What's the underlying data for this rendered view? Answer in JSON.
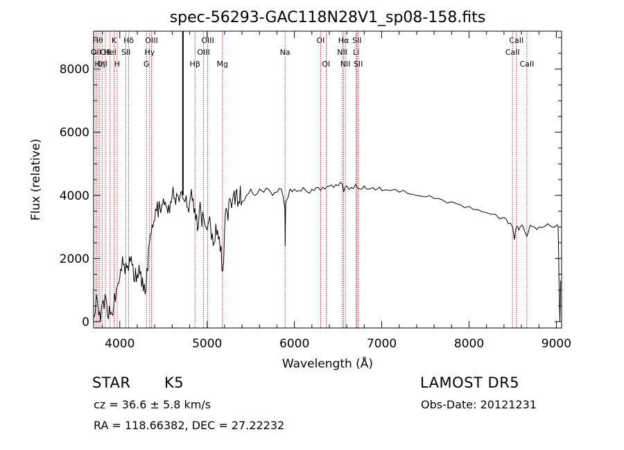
{
  "chart_data": {
    "type": "line",
    "title": "spec-56293-GAC118N28V1_sp08-158.fits",
    "xlabel": "Wavelength (Å)",
    "ylabel": "Flux (relative)",
    "xlim": [
      3700,
      9060
    ],
    "ylim": [
      -200,
      9200
    ],
    "xticks": [
      4000,
      5000,
      6000,
      7000,
      8000,
      9000
    ],
    "yticks": [
      0,
      2000,
      4000,
      6000,
      8000
    ],
    "grid": false,
    "spectrum": {
      "x": [
        3700,
        3720,
        3740,
        3760,
        3780,
        3800,
        3820,
        3840,
        3860,
        3880,
        3900,
        3920,
        3940,
        3960,
        3980,
        4000,
        4020,
        4040,
        4060,
        4080,
        4100,
        4120,
        4140,
        4160,
        4180,
        4200,
        4220,
        4240,
        4260,
        4280,
        4300,
        4320,
        4340,
        4360,
        4380,
        4400,
        4420,
        4440,
        4460,
        4480,
        4500,
        4520,
        4540,
        4560,
        4580,
        4600,
        4620,
        4640,
        4660,
        4680,
        4700,
        4720,
        4740,
        4760,
        4780,
        4800,
        4820,
        4840,
        4860,
        4880,
        4900,
        4920,
        4940,
        4960,
        4980,
        5000,
        5020,
        5040,
        5060,
        5080,
        5100,
        5120,
        5140,
        5160,
        5180,
        5200,
        5220,
        5240,
        5260,
        5280,
        5300,
        5320,
        5340,
        5360,
        5380,
        5400,
        5450,
        5500,
        5550,
        5600,
        5650,
        5700,
        5750,
        5800,
        5850,
        5890,
        5895,
        5900,
        5950,
        6000,
        6050,
        6100,
        6150,
        6200,
        6250,
        6300,
        6350,
        6400,
        6450,
        6500,
        6550,
        6563,
        6600,
        6650,
        6700,
        6750,
        6800,
        6850,
        6900,
        6950,
        7000,
        7100,
        7200,
        7300,
        7400,
        7500,
        7600,
        7700,
        7800,
        7900,
        8000,
        8100,
        8200,
        8300,
        8400,
        8450,
        8498,
        8520,
        8542,
        8570,
        8600,
        8620,
        8662,
        8700,
        8750,
        8800,
        8850,
        8900,
        8950,
        9000,
        9020,
        9030,
        9040,
        9050
      ],
      "y": [
        100,
        300,
        700,
        200,
        0,
        600,
        400,
        800,
        200,
        500,
        300,
        200,
        900,
        1000,
        1200,
        1400,
        1600,
        1800,
        1500,
        1700,
        1600,
        1900,
        1800,
        1300,
        1700,
        1500,
        1800,
        1600,
        1400,
        1200,
        1000,
        1600,
        2500,
        2800,
        3000,
        3200,
        3500,
        3300,
        3600,
        3700,
        3900,
        3800,
        3600,
        3700,
        3800,
        4000,
        3900,
        3700,
        4000,
        3800,
        4100,
        3900,
        3800,
        4000,
        3600,
        3800,
        4200,
        3900,
        3600,
        3400,
        3000,
        3800,
        3000,
        3300,
        3000,
        2900,
        3200,
        3000,
        2800,
        2500,
        3100,
        2900,
        2700,
        2400,
        1600,
        2900,
        3600,
        3200,
        3900,
        3600,
        4000,
        3700,
        4200,
        3800,
        4300,
        3800,
        4000,
        4200,
        4000,
        4200,
        4100,
        4200,
        4000,
        4100,
        4200,
        3600,
        2400,
        3800,
        4200,
        4200,
        4150,
        4250,
        4100,
        4200,
        4250,
        4150,
        4200,
        4300,
        4250,
        4300,
        4350,
        4100,
        4300,
        4250,
        4350,
        4200,
        4300,
        4200,
        4250,
        4200,
        4150,
        4150,
        4100,
        4050,
        4000,
        3950,
        3900,
        3850,
        3800,
        3700,
        3650,
        3550,
        3450,
        3400,
        3300,
        3100,
        3000,
        2600,
        3000,
        2900,
        3050,
        3000,
        2700,
        3050,
        3000,
        3000,
        3000,
        3100,
        3000,
        3050,
        3000,
        1400,
        0,
        1300
      ]
    },
    "peak": {
      "x": 4723,
      "y": 9200
    },
    "lines": [
      {
        "wl": 3727,
        "label": "OII",
        "row": 1
      },
      {
        "wl": 3750,
        "label": "Hθ",
        "row": 0
      },
      {
        "wl": 3771,
        "label": "Hη",
        "row": 2
      },
      {
        "wl": 3798,
        "label": "OII",
        "row": 2
      },
      {
        "wl": 3835,
        "label": "OII",
        "row": 1
      },
      {
        "wl": 3889,
        "label": "HeI",
        "row": 1
      },
      {
        "wl": 3934,
        "label": "K",
        "row": 0
      },
      {
        "wl": 3970,
        "label": "H",
        "row": 2
      },
      {
        "wl": 4070,
        "label": "SII",
        "row": 1
      },
      {
        "wl": 4102,
        "label": "Hδ",
        "row": 0
      },
      {
        "wl": 4305,
        "label": "G",
        "row": 2
      },
      {
        "wl": 4341,
        "label": "Hγ",
        "row": 1
      },
      {
        "wl": 4363,
        "label": "OIII",
        "row": 0
      },
      {
        "wl": 4861,
        "label": "Hβ",
        "row": 2
      },
      {
        "wl": 4959,
        "label": "OIII",
        "row": 1
      },
      {
        "wl": 5007,
        "label": "OIII",
        "row": 0
      },
      {
        "wl": 5175,
        "label": "Mg",
        "row": 2
      },
      {
        "wl": 5893,
        "label": "Na",
        "row": 1
      },
      {
        "wl": 6300,
        "label": "OI",
        "row": 0
      },
      {
        "wl": 6363,
        "label": "OI",
        "row": 2
      },
      {
        "wl": 6548,
        "label": "NII",
        "row": 1
      },
      {
        "wl": 6563,
        "label": "Hα",
        "row": 0
      },
      {
        "wl": 6583,
        "label": "NII",
        "row": 2
      },
      {
        "wl": 6707,
        "label": "Li",
        "row": 1
      },
      {
        "wl": 6716,
        "label": "SII",
        "row": 0
      },
      {
        "wl": 6731,
        "label": "SII",
        "row": 2
      },
      {
        "wl": 8498,
        "label": "CaII",
        "row": 1
      },
      {
        "wl": 8542,
        "label": "CaII",
        "row": 0
      },
      {
        "wl": 8662,
        "label": "CaII",
        "row": 2
      }
    ],
    "line_color": "#cc0000",
    "spectrum_color": "#000000"
  },
  "info": {
    "class": "STAR",
    "subclass": "K5",
    "survey": "LAMOST  DR5",
    "cz": "cz = 36.6 ± 5.8 km/s",
    "obsdate": "Obs-Date: 20121231",
    "coords": "RA = 118.66382, DEC =  27.22232"
  }
}
